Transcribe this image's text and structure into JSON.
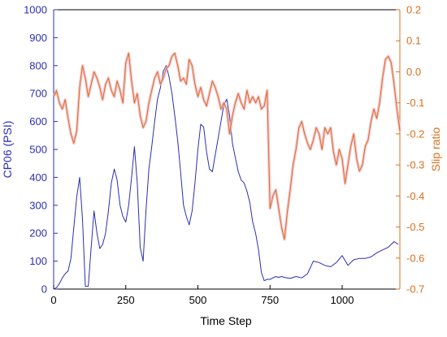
{
  "chart_data": {
    "type": "line",
    "title": "",
    "xlabel": "Time Step",
    "ylabel_left": "CP06 (PSI)",
    "ylabel_right": "Slip ratio",
    "xlim": [
      0,
      1200
    ],
    "ylim_left": [
      0,
      1000
    ],
    "ylim_right": [
      -0.7,
      0.2
    ],
    "x_ticks": [
      0,
      250,
      500,
      750,
      1000
    ],
    "y_left_ticks": [
      0,
      100,
      200,
      300,
      400,
      500,
      600,
      700,
      800,
      900,
      1000
    ],
    "y_right_ticks": [
      -0.7,
      -0.6,
      -0.5,
      -0.4,
      -0.3,
      -0.2,
      -0.1,
      0.0,
      0.1,
      0.2
    ],
    "y_right_tick_labels": [
      "-0.7",
      "-0.6",
      "-0.5",
      "-0.4",
      "-0.3",
      "-0.2",
      "-0.1",
      "0.0",
      "0.1",
      "0.2"
    ],
    "grid": false,
    "colors": {
      "left_series": "#2a2fb0",
      "right_series": "#d9701e",
      "right_series_shadow": "#f3b8c8",
      "axis_left": "#2a2fb0",
      "axis_right": "#d9701e"
    },
    "series": [
      {
        "axis": "left",
        "x": [
          0,
          10,
          20,
          30,
          40,
          50,
          60,
          70,
          80,
          90,
          100,
          110,
          120,
          130,
          140,
          150,
          160,
          170,
          180,
          190,
          200,
          210,
          220,
          230,
          240,
          250,
          260,
          270,
          280,
          290,
          300,
          310,
          320,
          330,
          340,
          350,
          360,
          370,
          380,
          390,
          400,
          410,
          420,
          430,
          440,
          450,
          460,
          470,
          480,
          490,
          500,
          510,
          520,
          530,
          540,
          550,
          560,
          570,
          580,
          590,
          600,
          610,
          620,
          630,
          640,
          650,
          660,
          670,
          680,
          690,
          700,
          710,
          720,
          730,
          740,
          750,
          760,
          770,
          780,
          790,
          800,
          820,
          840,
          860,
          880,
          900,
          920,
          940,
          960,
          980,
          1000,
          1020,
          1040,
          1060,
          1080,
          1100,
          1120,
          1140,
          1160,
          1180,
          1195
        ],
        "values": [
          0,
          5,
          20,
          40,
          55,
          65,
          110,
          220,
          330,
          400,
          250,
          10,
          10,
          150,
          280,
          200,
          145,
          160,
          200,
          280,
          380,
          430,
          390,
          300,
          260,
          240,
          300,
          400,
          510,
          380,
          150,
          100,
          280,
          430,
          510,
          600,
          680,
          720,
          780,
          800,
          760,
          700,
          620,
          530,
          420,
          300,
          260,
          230,
          280,
          380,
          500,
          590,
          580,
          490,
          430,
          420,
          480,
          540,
          600,
          660,
          680,
          620,
          520,
          470,
          420,
          390,
          380,
          350,
          310,
          240,
          200,
          140,
          60,
          30,
          35,
          35,
          40,
          45,
          42,
          45,
          42,
          38,
          45,
          40,
          55,
          100,
          95,
          85,
          80,
          95,
          120,
          85,
          105,
          110,
          110,
          115,
          130,
          140,
          150,
          170,
          160
        ]
      },
      {
        "axis": "right",
        "x": [
          0,
          10,
          20,
          30,
          40,
          50,
          60,
          70,
          80,
          90,
          100,
          110,
          120,
          130,
          140,
          150,
          160,
          170,
          180,
          190,
          200,
          210,
          220,
          230,
          240,
          250,
          260,
          270,
          280,
          290,
          300,
          310,
          320,
          330,
          340,
          350,
          360,
          370,
          380,
          390,
          400,
          410,
          420,
          430,
          440,
          450,
          460,
          470,
          480,
          490,
          500,
          510,
          520,
          530,
          540,
          550,
          560,
          570,
          580,
          590,
          600,
          610,
          620,
          630,
          640,
          650,
          660,
          670,
          680,
          690,
          700,
          710,
          720,
          730,
          740,
          750,
          760,
          770,
          780,
          790,
          800,
          810,
          820,
          830,
          840,
          850,
          860,
          870,
          880,
          890,
          900,
          910,
          920,
          930,
          940,
          950,
          960,
          970,
          980,
          990,
          1000,
          1010,
          1020,
          1030,
          1040,
          1050,
          1060,
          1070,
          1080,
          1090,
          1100,
          1110,
          1120,
          1130,
          1140,
          1150,
          1160,
          1170,
          1180,
          1190,
          1200
        ],
        "values": [
          -0.08,
          -0.06,
          -0.1,
          -0.12,
          -0.09,
          -0.15,
          -0.2,
          -0.23,
          -0.19,
          -0.05,
          0.02,
          -0.02,
          -0.08,
          -0.04,
          0.0,
          -0.02,
          -0.05,
          -0.09,
          -0.04,
          -0.02,
          -0.06,
          -0.08,
          -0.03,
          -0.06,
          -0.1,
          0.03,
          0.06,
          -0.03,
          -0.1,
          -0.07,
          -0.14,
          -0.18,
          -0.16,
          -0.1,
          -0.06,
          -0.02,
          0.0,
          -0.04,
          -0.02,
          0.01,
          0.02,
          0.05,
          0.06,
          0.02,
          -0.03,
          -0.02,
          -0.04,
          0.04,
          0.02,
          -0.04,
          -0.08,
          -0.05,
          -0.09,
          -0.11,
          -0.07,
          -0.03,
          -0.05,
          -0.08,
          -0.12,
          -0.1,
          -0.12,
          -0.2,
          -0.14,
          -0.1,
          -0.07,
          -0.1,
          -0.12,
          -0.06,
          -0.1,
          -0.08,
          -0.1,
          -0.08,
          -0.12,
          -0.11,
          -0.06,
          -0.44,
          -0.4,
          -0.38,
          -0.44,
          -0.5,
          -0.54,
          -0.45,
          -0.38,
          -0.3,
          -0.25,
          -0.18,
          -0.16,
          -0.2,
          -0.23,
          -0.25,
          -0.22,
          -0.18,
          -0.2,
          -0.25,
          -0.18,
          -0.2,
          -0.18,
          -0.26,
          -0.3,
          -0.25,
          -0.28,
          -0.36,
          -0.3,
          -0.24,
          -0.2,
          -0.28,
          -0.32,
          -0.3,
          -0.24,
          -0.22,
          -0.16,
          -0.12,
          -0.15,
          -0.1,
          -0.02,
          0.04,
          0.05,
          0.03,
          -0.04,
          -0.12,
          -0.19
        ]
      }
    ]
  }
}
